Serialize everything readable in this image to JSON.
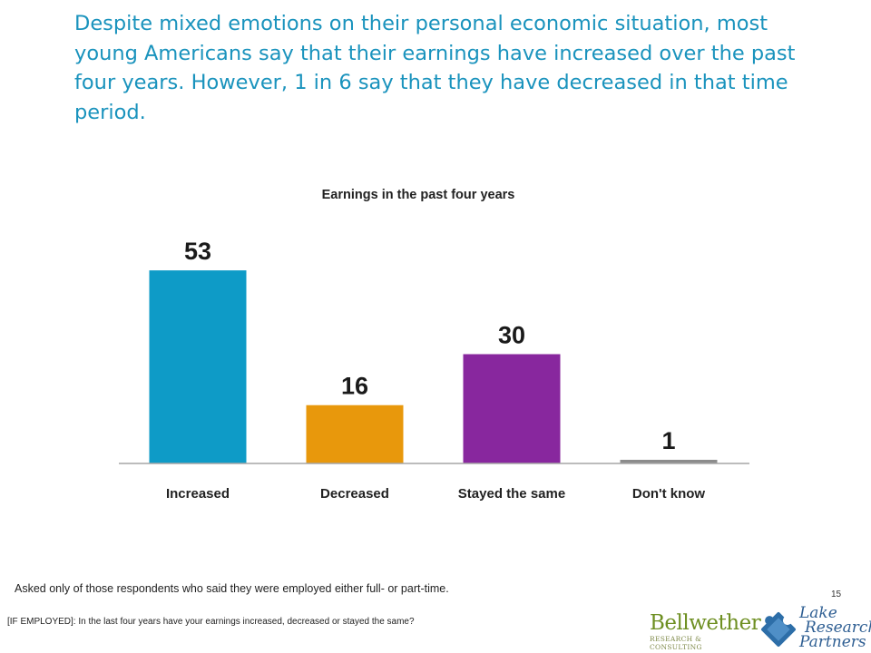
{
  "headline": "Despite mixed emotions on their personal economic situation, most young Americans say that their earnings have increased over the past four years. However, 1 in 6 say that they have decreased in that time period.",
  "chart_data": {
    "type": "bar",
    "title": "Earnings in the past four years",
    "xlabel": "",
    "ylabel": "",
    "ylim": [
      0,
      60
    ],
    "grid": false,
    "legend": "none",
    "categories": [
      "Increased",
      "Decreased",
      "Stayed the same",
      "Don't know"
    ],
    "values": [
      53,
      16,
      30,
      1
    ],
    "data_labels": [
      "53",
      "16",
      "30",
      "1"
    ],
    "colors": [
      "#0e9bc7",
      "#e8980c",
      "#88279e",
      "#8c8c8c"
    ],
    "axis_color": "#a6a6a6"
  },
  "footnote": "Asked only of those respondents who said they were employed either full- or part-time.",
  "page_number": "15",
  "question_text": "[IF EMPLOYED]: In the last four years have your earnings increased, decreased or stayed the same?",
  "logos": {
    "bellwether_name": "Bellwether",
    "bellwether_sub": "RESEARCH & CONSULTING",
    "lrp_line1": "Lake",
    "lrp_line2": "Research",
    "lrp_line3": "Partners"
  }
}
